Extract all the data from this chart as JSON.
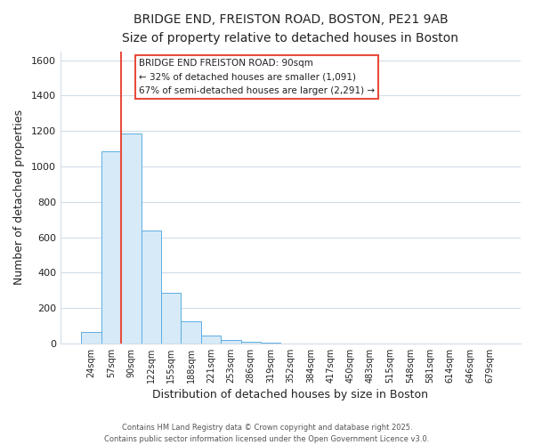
{
  "title": "BRIDGE END, FREISTON ROAD, BOSTON, PE21 9AB",
  "subtitle": "Size of property relative to detached houses in Boston",
  "xlabel": "Distribution of detached houses by size in Boston",
  "ylabel": "Number of detached properties",
  "bar_labels": [
    "24sqm",
    "57sqm",
    "90sqm",
    "122sqm",
    "155sqm",
    "188sqm",
    "221sqm",
    "253sqm",
    "286sqm",
    "319sqm",
    "352sqm",
    "384sqm",
    "417sqm",
    "450sqm",
    "483sqm",
    "515sqm",
    "548sqm",
    "581sqm",
    "614sqm",
    "646sqm",
    "679sqm"
  ],
  "bar_values": [
    65,
    1085,
    1185,
    640,
    285,
    125,
    42,
    20,
    10,
    5,
    0,
    0,
    0,
    0,
    0,
    0,
    0,
    0,
    0,
    0,
    0
  ],
  "bar_fill_color": "#d6eaf8",
  "bar_edge_color": "#5dade2",
  "highlight_index": 2,
  "highlight_line_color": "#e74c3c",
  "ylim": [
    0,
    1650
  ],
  "yticks": [
    0,
    200,
    400,
    600,
    800,
    1000,
    1200,
    1400,
    1600
  ],
  "annotation_box_title": "BRIDGE END FREISTON ROAD: 90sqm",
  "annotation_line1": "← 32% of detached houses are smaller (1,091)",
  "annotation_line2": "67% of semi-detached houses are larger (2,291) →",
  "annotation_box_color": "#e74c3c",
  "background_color": "#ffffff",
  "plot_bg_color": "#ffffff",
  "grid_color": "#d0dce8",
  "footer1": "Contains HM Land Registry data © Crown copyright and database right 2025.",
  "footer2": "Contains public sector information licensed under the Open Government Licence v3.0.",
  "figsize": [
    6.0,
    5.0
  ],
  "dpi": 100
}
